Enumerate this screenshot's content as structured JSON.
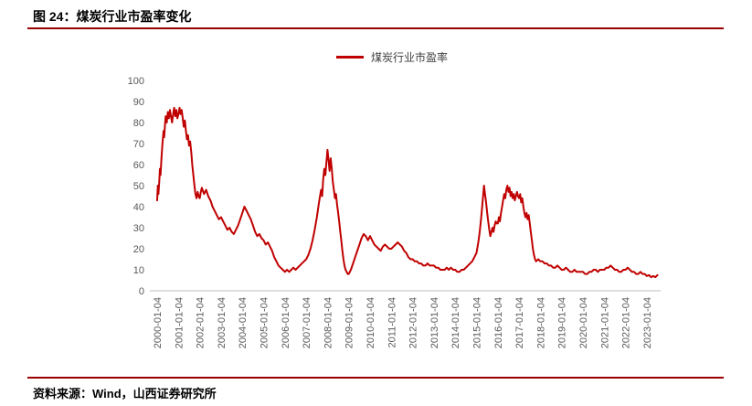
{
  "header": {
    "title": "图 24：煤炭行业市盈率变化"
  },
  "footer": {
    "source": "资料来源：Wind，山西证券研究所"
  },
  "colors": {
    "accent_rule": "#990000",
    "line": "#C00000",
    "axis": "#BFBFBF",
    "tick_text": "#595959"
  },
  "chart_data": {
    "type": "line",
    "title": "煤炭行业市盈率变化",
    "legend": "煤炭行业市盈率",
    "xlabel": "",
    "ylabel": "",
    "ylim": [
      0,
      100
    ],
    "y_ticks": [
      0,
      10,
      20,
      30,
      40,
      50,
      60,
      70,
      80,
      90,
      100
    ],
    "grid": false,
    "legend_position": "top-center",
    "x_start_year": 2000,
    "x_tick_labels": [
      "2000-01-04",
      "2001-01-04",
      "2002-01-04",
      "2003-01-04",
      "2004-01-04",
      "2005-01-04",
      "2006-01-04",
      "2007-01-04",
      "2008-01-04",
      "2009-01-04",
      "2010-01-04",
      "2011-01-04",
      "2012-01-04",
      "2013-01-04",
      "2014-01-04",
      "2015-01-04",
      "2016-01-04",
      "2017-01-04",
      "2018-01-04",
      "2019-01-04",
      "2020-01-04",
      "2021-01-04",
      "2022-01-04",
      "2023-01-04"
    ],
    "series": [
      {
        "name": "煤炭行业市盈率",
        "color": "#C00000",
        "points": [
          [
            2000.0,
            43
          ],
          [
            2000.03,
            50
          ],
          [
            2000.06,
            46
          ],
          [
            2000.1,
            52
          ],
          [
            2000.13,
            58
          ],
          [
            2000.16,
            55
          ],
          [
            2000.2,
            63
          ],
          [
            2000.25,
            70
          ],
          [
            2000.3,
            76
          ],
          [
            2000.33,
            73
          ],
          [
            2000.37,
            79
          ],
          [
            2000.4,
            83
          ],
          [
            2000.45,
            80
          ],
          [
            2000.5,
            85
          ],
          [
            2000.55,
            82
          ],
          [
            2000.6,
            86
          ],
          [
            2000.65,
            83
          ],
          [
            2000.7,
            80
          ],
          [
            2000.75,
            84
          ],
          [
            2000.8,
            87
          ],
          [
            2000.85,
            83
          ],
          [
            2000.9,
            86
          ],
          [
            2000.95,
            82
          ],
          [
            2001.0,
            84
          ],
          [
            2001.05,
            87
          ],
          [
            2001.1,
            84
          ],
          [
            2001.15,
            86
          ],
          [
            2001.2,
            82
          ],
          [
            2001.25,
            78
          ],
          [
            2001.3,
            81
          ],
          [
            2001.35,
            76
          ],
          [
            2001.4,
            72
          ],
          [
            2001.45,
            74
          ],
          [
            2001.5,
            69
          ],
          [
            2001.55,
            71
          ],
          [
            2001.6,
            66
          ],
          [
            2001.65,
            60
          ],
          [
            2001.7,
            55
          ],
          [
            2001.75,
            50
          ],
          [
            2001.8,
            46
          ],
          [
            2001.85,
            44
          ],
          [
            2001.9,
            47
          ],
          [
            2001.95,
            45
          ],
          [
            2002.0,
            44
          ],
          [
            2002.05,
            47
          ],
          [
            2002.1,
            49
          ],
          [
            2002.2,
            46
          ],
          [
            2002.3,
            48
          ],
          [
            2002.4,
            45
          ],
          [
            2002.5,
            43
          ],
          [
            2002.6,
            40
          ],
          [
            2002.7,
            38
          ],
          [
            2002.8,
            36
          ],
          [
            2002.9,
            34
          ],
          [
            2003.0,
            35
          ],
          [
            2003.1,
            33
          ],
          [
            2003.2,
            31
          ],
          [
            2003.3,
            29
          ],
          [
            2003.4,
            30
          ],
          [
            2003.5,
            28
          ],
          [
            2003.6,
            27
          ],
          [
            2003.7,
            29
          ],
          [
            2003.8,
            31
          ],
          [
            2003.9,
            34
          ],
          [
            2004.0,
            37
          ],
          [
            2004.1,
            40
          ],
          [
            2004.2,
            38
          ],
          [
            2004.3,
            36
          ],
          [
            2004.4,
            34
          ],
          [
            2004.5,
            31
          ],
          [
            2004.6,
            28
          ],
          [
            2004.7,
            26
          ],
          [
            2004.8,
            27
          ],
          [
            2004.9,
            25
          ],
          [
            2005.0,
            24
          ],
          [
            2005.1,
            22
          ],
          [
            2005.2,
            23
          ],
          [
            2005.3,
            21
          ],
          [
            2005.4,
            19
          ],
          [
            2005.5,
            16
          ],
          [
            2005.6,
            14
          ],
          [
            2005.7,
            12
          ],
          [
            2005.8,
            11
          ],
          [
            2005.9,
            10
          ],
          [
            2006.0,
            9
          ],
          [
            2006.1,
            10
          ],
          [
            2006.2,
            9
          ],
          [
            2006.3,
            10
          ],
          [
            2006.4,
            11
          ],
          [
            2006.5,
            10
          ],
          [
            2006.6,
            11
          ],
          [
            2006.7,
            12
          ],
          [
            2006.8,
            13
          ],
          [
            2006.9,
            14
          ],
          [
            2007.0,
            15
          ],
          [
            2007.1,
            17
          ],
          [
            2007.2,
            20
          ],
          [
            2007.3,
            24
          ],
          [
            2007.4,
            29
          ],
          [
            2007.5,
            35
          ],
          [
            2007.6,
            42
          ],
          [
            2007.7,
            48
          ],
          [
            2007.75,
            45
          ],
          [
            2007.8,
            53
          ],
          [
            2007.85,
            58
          ],
          [
            2007.9,
            55
          ],
          [
            2007.95,
            61
          ],
          [
            2008.0,
            67
          ],
          [
            2008.05,
            62
          ],
          [
            2008.1,
            57
          ],
          [
            2008.15,
            63
          ],
          [
            2008.2,
            58
          ],
          [
            2008.25,
            52
          ],
          [
            2008.3,
            48
          ],
          [
            2008.35,
            44
          ],
          [
            2008.4,
            46
          ],
          [
            2008.45,
            41
          ],
          [
            2008.5,
            37
          ],
          [
            2008.55,
            33
          ],
          [
            2008.6,
            28
          ],
          [
            2008.65,
            24
          ],
          [
            2008.7,
            19
          ],
          [
            2008.75,
            15
          ],
          [
            2008.8,
            12
          ],
          [
            2008.85,
            10
          ],
          [
            2008.9,
            9
          ],
          [
            2008.95,
            8
          ],
          [
            2009.0,
            8
          ],
          [
            2009.1,
            10
          ],
          [
            2009.2,
            13
          ],
          [
            2009.3,
            16
          ],
          [
            2009.4,
            19
          ],
          [
            2009.5,
            22
          ],
          [
            2009.6,
            25
          ],
          [
            2009.7,
            27
          ],
          [
            2009.8,
            26
          ],
          [
            2009.9,
            24
          ],
          [
            2010.0,
            26
          ],
          [
            2010.1,
            24
          ],
          [
            2010.2,
            22
          ],
          [
            2010.3,
            21
          ],
          [
            2010.4,
            20
          ],
          [
            2010.5,
            19
          ],
          [
            2010.6,
            21
          ],
          [
            2010.7,
            22
          ],
          [
            2010.8,
            21
          ],
          [
            2010.9,
            20
          ],
          [
            2011.0,
            20
          ],
          [
            2011.1,
            21
          ],
          [
            2011.2,
            22
          ],
          [
            2011.3,
            23
          ],
          [
            2011.4,
            22
          ],
          [
            2011.5,
            21
          ],
          [
            2011.6,
            19
          ],
          [
            2011.7,
            18
          ],
          [
            2011.8,
            16
          ],
          [
            2011.9,
            15
          ],
          [
            2012.0,
            15
          ],
          [
            2012.1,
            14
          ],
          [
            2012.2,
            14
          ],
          [
            2012.3,
            13
          ],
          [
            2012.4,
            13
          ],
          [
            2012.5,
            12
          ],
          [
            2012.6,
            12
          ],
          [
            2012.7,
            13
          ],
          [
            2012.8,
            12
          ],
          [
            2012.9,
            12
          ],
          [
            2013.0,
            12
          ],
          [
            2013.1,
            11
          ],
          [
            2013.2,
            11
          ],
          [
            2013.3,
            10
          ],
          [
            2013.4,
            10
          ],
          [
            2013.5,
            10
          ],
          [
            2013.6,
            11
          ],
          [
            2013.7,
            10
          ],
          [
            2013.8,
            11
          ],
          [
            2013.9,
            10
          ],
          [
            2014.0,
            10
          ],
          [
            2014.1,
            9
          ],
          [
            2014.2,
            9
          ],
          [
            2014.3,
            10
          ],
          [
            2014.4,
            10
          ],
          [
            2014.5,
            11
          ],
          [
            2014.6,
            12
          ],
          [
            2014.7,
            13
          ],
          [
            2014.8,
            14
          ],
          [
            2014.9,
            16
          ],
          [
            2015.0,
            18
          ],
          [
            2015.05,
            21
          ],
          [
            2015.1,
            24
          ],
          [
            2015.15,
            28
          ],
          [
            2015.2,
            33
          ],
          [
            2015.25,
            38
          ],
          [
            2015.3,
            44
          ],
          [
            2015.35,
            50
          ],
          [
            2015.4,
            46
          ],
          [
            2015.45,
            42
          ],
          [
            2015.5,
            37
          ],
          [
            2015.55,
            33
          ],
          [
            2015.6,
            29
          ],
          [
            2015.65,
            26
          ],
          [
            2015.7,
            28
          ],
          [
            2015.75,
            30
          ],
          [
            2015.8,
            28
          ],
          [
            2015.85,
            31
          ],
          [
            2015.9,
            33
          ],
          [
            2015.95,
            32
          ],
          [
            2016.0,
            32
          ],
          [
            2016.05,
            35
          ],
          [
            2016.1,
            33
          ],
          [
            2016.15,
            37
          ],
          [
            2016.2,
            40
          ],
          [
            2016.25,
            43
          ],
          [
            2016.3,
            46
          ],
          [
            2016.35,
            44
          ],
          [
            2016.4,
            48
          ],
          [
            2016.45,
            50
          ],
          [
            2016.5,
            47
          ],
          [
            2016.55,
            49
          ],
          [
            2016.6,
            45
          ],
          [
            2016.65,
            47
          ],
          [
            2016.7,
            44
          ],
          [
            2016.75,
            46
          ],
          [
            2016.8,
            43
          ],
          [
            2016.85,
            45
          ],
          [
            2016.9,
            47
          ],
          [
            2016.95,
            45
          ],
          [
            2017.0,
            44
          ],
          [
            2017.05,
            46
          ],
          [
            2017.1,
            42
          ],
          [
            2017.15,
            44
          ],
          [
            2017.2,
            40
          ],
          [
            2017.25,
            37
          ],
          [
            2017.3,
            35
          ],
          [
            2017.35,
            37
          ],
          [
            2017.4,
            34
          ],
          [
            2017.45,
            36
          ],
          [
            2017.5,
            32
          ],
          [
            2017.55,
            28
          ],
          [
            2017.6,
            24
          ],
          [
            2017.65,
            20
          ],
          [
            2017.7,
            17
          ],
          [
            2017.75,
            15
          ],
          [
            2017.8,
            14
          ],
          [
            2017.9,
            15
          ],
          [
            2018.0,
            14
          ],
          [
            2018.1,
            14
          ],
          [
            2018.2,
            13
          ],
          [
            2018.3,
            13
          ],
          [
            2018.4,
            12
          ],
          [
            2018.5,
            12
          ],
          [
            2018.6,
            11
          ],
          [
            2018.7,
            11
          ],
          [
            2018.8,
            12
          ],
          [
            2018.9,
            11
          ],
          [
            2019.0,
            10
          ],
          [
            2019.1,
            10
          ],
          [
            2019.2,
            11
          ],
          [
            2019.3,
            10
          ],
          [
            2019.4,
            9
          ],
          [
            2019.5,
            9
          ],
          [
            2019.6,
            10
          ],
          [
            2019.7,
            9
          ],
          [
            2019.8,
            9
          ],
          [
            2019.9,
            9
          ],
          [
            2020.0,
            9
          ],
          [
            2020.1,
            8
          ],
          [
            2020.2,
            8
          ],
          [
            2020.3,
            9
          ],
          [
            2020.4,
            9
          ],
          [
            2020.5,
            10
          ],
          [
            2020.6,
            10
          ],
          [
            2020.7,
            9
          ],
          [
            2020.8,
            10
          ],
          [
            2020.9,
            10
          ],
          [
            2021.0,
            10
          ],
          [
            2021.1,
            11
          ],
          [
            2021.2,
            11
          ],
          [
            2021.3,
            12
          ],
          [
            2021.4,
            11
          ],
          [
            2021.5,
            10
          ],
          [
            2021.6,
            10
          ],
          [
            2021.7,
            9
          ],
          [
            2021.8,
            9
          ],
          [
            2021.9,
            10
          ],
          [
            2022.0,
            10
          ],
          [
            2022.1,
            11
          ],
          [
            2022.2,
            10
          ],
          [
            2022.3,
            9
          ],
          [
            2022.4,
            9
          ],
          [
            2022.5,
            8
          ],
          [
            2022.6,
            8
          ],
          [
            2022.7,
            9
          ],
          [
            2022.8,
            8
          ],
          [
            2022.9,
            8
          ],
          [
            2023.0,
            7
          ],
          [
            2023.1,
            7.5
          ],
          [
            2023.2,
            6.5
          ],
          [
            2023.3,
            7
          ],
          [
            2023.4,
            6.5
          ],
          [
            2023.5,
            7.5
          ]
        ]
      }
    ]
  }
}
